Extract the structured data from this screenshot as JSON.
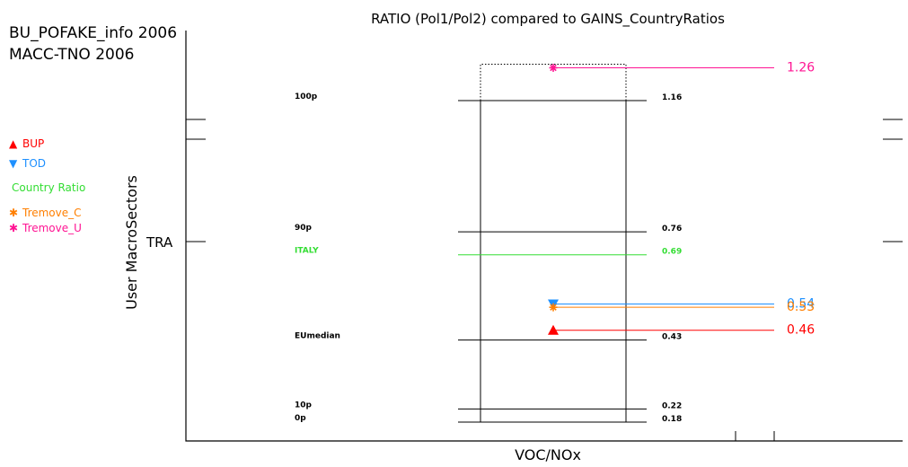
{
  "header": {
    "line1": "BU_POFAKE_info 2006",
    "line2": "MACC-TNO 2006"
  },
  "legend": [
    {
      "symbol": "▲",
      "label": "BUP",
      "color": "#ff0000"
    },
    {
      "symbol": "▼",
      "label": "TOD",
      "color": "#1e90ff"
    },
    {
      "symbol": "",
      "label": "Country Ratio",
      "color": "#33dd33"
    },
    {
      "symbol": "✱",
      "label": "Tremove_C",
      "color": "#ff7f00"
    },
    {
      "symbol": "✱",
      "label": "Tremove_U",
      "color": "#ff1493"
    }
  ],
  "chart_data": {
    "type": "scatter",
    "title": "RATIO (Pol1/Pol2) compared to GAINS_CountryRatios",
    "xlabel": "VOC/NOx",
    "ylabel": "User MacroSectors",
    "category": "TRA",
    "ylim": [
      0.12,
      1.32
    ],
    "reference_lines": [
      {
        "label": "100p",
        "value": 1.16,
        "value_label": "1.16",
        "color": "#000000"
      },
      {
        "label": "90p",
        "value": 0.76,
        "value_label": "0.76",
        "color": "#000000"
      },
      {
        "label": "ITALY",
        "value": 0.69,
        "value_label": "0.69",
        "color": "#33dd33"
      },
      {
        "label": "EUmedian",
        "value": 0.43,
        "value_label": "0.43",
        "color": "#000000"
      },
      {
        "label": "10p",
        "value": 0.22,
        "value_label": "0.22",
        "color": "#000000"
      },
      {
        "label": "0p",
        "value": 0.18,
        "value_label": "0.18",
        "color": "#000000"
      }
    ],
    "series": [
      {
        "name": "Tremove_U",
        "value": 1.26,
        "value_label": "1.26",
        "color": "#ff1493",
        "marker": "asterisk"
      },
      {
        "name": "TOD",
        "value": 0.54,
        "value_label": "0.54",
        "color": "#1e90ff",
        "marker": "triangle-down"
      },
      {
        "name": "Tremove_C",
        "value": 0.53,
        "value_label": "0.53",
        "color": "#ff7f00",
        "marker": "asterisk"
      },
      {
        "name": "BUP",
        "value": 0.46,
        "value_label": "0.46",
        "color": "#ff0000",
        "marker": "triangle-up"
      }
    ]
  }
}
